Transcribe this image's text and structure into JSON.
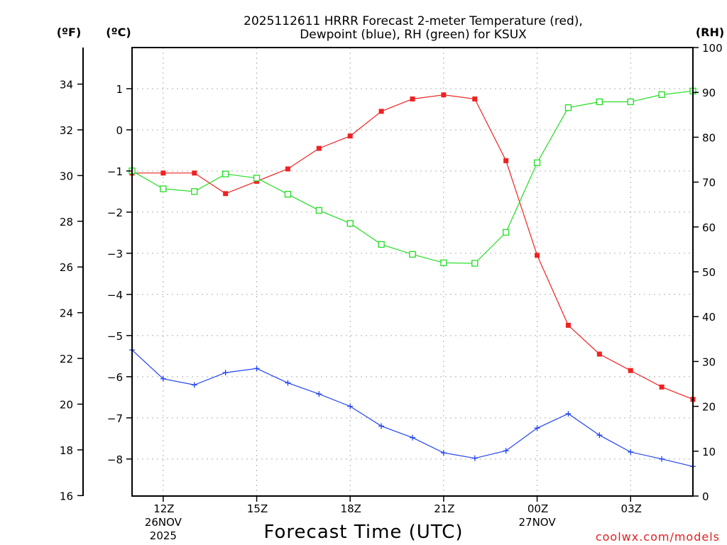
{
  "chart_data": {
    "type": "line",
    "title_line1": "2025112611 HRRR Forecast 2-meter Temperature (red),",
    "title_line2": "Dewpoint (blue), RH (green) for KSUX",
    "xlabel": "Forecast Time (UTC)",
    "credit": "coolwx.com/models",
    "units": {
      "fahrenheit": "(ºF)",
      "celsius": "(ºC)",
      "rh": "(RH)"
    },
    "x_hours": [
      11,
      12,
      13,
      14,
      15,
      16,
      17,
      18,
      19,
      20,
      21,
      22,
      23,
      24,
      25,
      26,
      27,
      28,
      29
    ],
    "xlim": [
      11,
      29
    ],
    "x_ticks": [
      {
        "hour": 12,
        "label": "12Z",
        "date1": "26NOV",
        "date2": "2025"
      },
      {
        "hour": 15,
        "label": "15Z",
        "date1": "",
        "date2": ""
      },
      {
        "hour": 18,
        "label": "18Z",
        "date1": "",
        "date2": ""
      },
      {
        "hour": 21,
        "label": "21Z",
        "date1": "",
        "date2": ""
      },
      {
        "hour": 24,
        "label": "00Z",
        "date1": "27NOV",
        "date2": ""
      },
      {
        "hour": 27,
        "label": "03Z",
        "date1": "",
        "date2": ""
      }
    ],
    "celsius_range": [
      -8.9,
      2.0
    ],
    "celsius_ticks": [
      "1",
      "0",
      "−1",
      "−2",
      "−3",
      "−4",
      "−5",
      "−6",
      "−7",
      "−8"
    ],
    "fahrenheit_ticks": [
      "34",
      "32",
      "30",
      "28",
      "26",
      "24",
      "22",
      "20",
      "18",
      "16"
    ],
    "rh_range": [
      0,
      100
    ],
    "rh_ticks": [
      "100",
      "90",
      "80",
      "70",
      "60",
      "50",
      "40",
      "30",
      "20",
      "10",
      "0"
    ],
    "series": [
      {
        "name": "Temperature",
        "unit": "C",
        "color": "#ee2222",
        "marker": "filled-square",
        "values": [
          -1.05,
          -1.05,
          -1.05,
          -1.55,
          -1.25,
          -0.95,
          -0.45,
          -0.15,
          0.45,
          0.75,
          0.85,
          0.75,
          -0.75,
          -3.05,
          -4.75,
          -5.45,
          -5.85,
          -6.25,
          -6.55
        ]
      },
      {
        "name": "Dewpoint",
        "unit": "C",
        "color": "#2244ee",
        "marker": "plus",
        "values": [
          -5.35,
          -6.05,
          -6.2,
          -5.9,
          -5.8,
          -6.15,
          -6.42,
          -6.72,
          -7.2,
          -7.48,
          -7.85,
          -7.98,
          -7.8,
          -7.25,
          -6.9,
          -7.42,
          -7.83,
          -8.0,
          -8.18
        ]
      },
      {
        "name": "RH",
        "unit": "%",
        "color": "#22dd22",
        "marker": "open-square",
        "values": [
          72.5,
          68.5,
          67.9,
          71.8,
          70.9,
          67.3,
          63.7,
          60.8,
          56.1,
          53.9,
          52.0,
          51.9,
          58.8,
          74.3,
          86.6,
          87.9,
          87.9,
          89.5,
          90.3
        ]
      }
    ]
  }
}
